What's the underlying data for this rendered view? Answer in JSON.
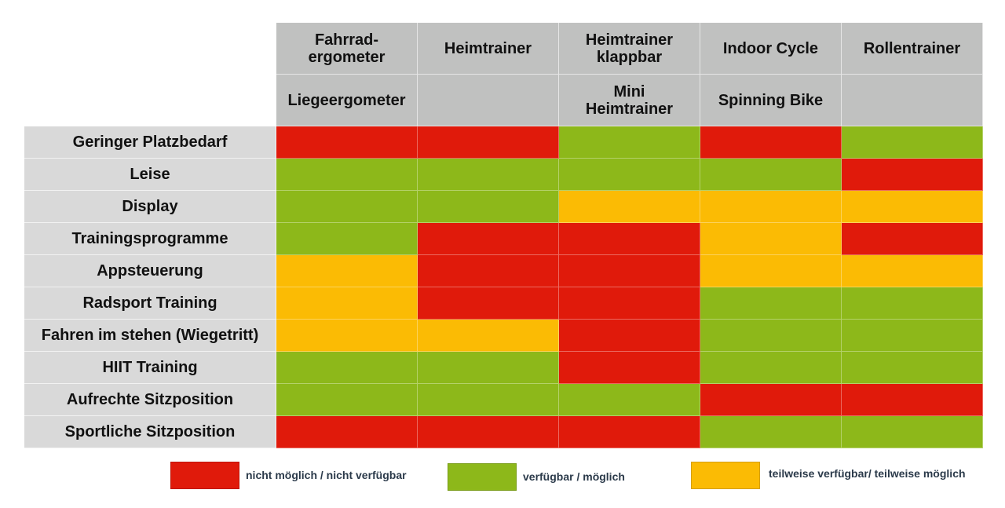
{
  "colors": {
    "rot": "#e01a0b",
    "gruen": "#8db81a",
    "gelb": "#fbbb04"
  },
  "columns": [
    {
      "top": "Fahrrad-\nergometer",
      "bottom": "Liegeergometer"
    },
    {
      "top": "Heimtrainer",
      "bottom": ""
    },
    {
      "top": "Heimtrainer\nklappbar",
      "bottom": "Mini\nHeimtrainer"
    },
    {
      "top": "Indoor Cycle",
      "bottom": "Spinning Bike"
    },
    {
      "top": "Rollentrainer",
      "bottom": ""
    }
  ],
  "rows": [
    {
      "label": "Geringer Platzbedarf",
      "cells": [
        "rot",
        "rot",
        "gruen",
        "rot",
        "gruen"
      ]
    },
    {
      "label": "Leise",
      "cells": [
        "gruen",
        "gruen",
        "gruen",
        "gruen",
        "rot"
      ]
    },
    {
      "label": "Display",
      "cells": [
        "gruen",
        "gruen",
        "gelb",
        "gelb",
        "gelb"
      ]
    },
    {
      "label": "Trainingsprogramme",
      "cells": [
        "gruen",
        "rot",
        "rot",
        "gelb",
        "rot"
      ]
    },
    {
      "label": "Appsteuerung",
      "cells": [
        "gelb",
        "rot",
        "rot",
        "gelb",
        "gelb"
      ]
    },
    {
      "label": "Radsport Training",
      "cells": [
        "gelb",
        "rot",
        "rot",
        "gruen",
        "gruen"
      ]
    },
    {
      "label": "Fahren im stehen (Wiegetritt)",
      "cells": [
        "gelb",
        "gelb",
        "rot",
        "gruen",
        "gruen"
      ]
    },
    {
      "label": "HIIT Training",
      "cells": [
        "gruen",
        "gruen",
        "rot",
        "gruen",
        "gruen"
      ]
    },
    {
      "label": "Aufrechte Sitzposition",
      "cells": [
        "gruen",
        "gruen",
        "gruen",
        "rot",
        "rot"
      ]
    },
    {
      "label": "Sportliche Sitzposition",
      "cells": [
        "rot",
        "rot",
        "rot",
        "gruen",
        "gruen"
      ]
    }
  ],
  "legend": [
    {
      "key": "rot",
      "label": "nicht möglich / nicht verfügbar"
    },
    {
      "key": "gruen",
      "label": "verfügbar / möglich"
    },
    {
      "key": "gelb",
      "label": "teilweise verfügbar/ teilweise möglich"
    }
  ]
}
